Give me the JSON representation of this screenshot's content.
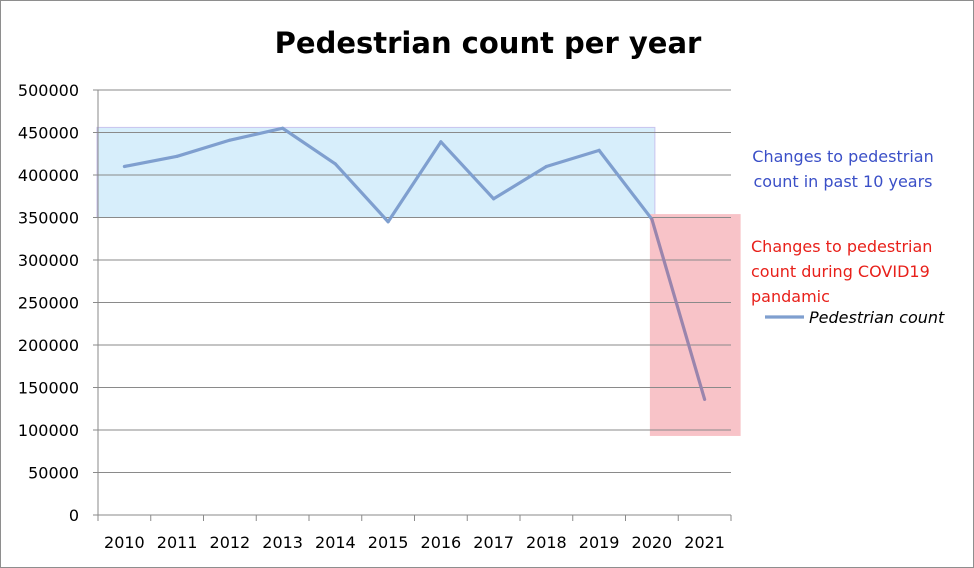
{
  "chart_data": {
    "type": "line",
    "title": "Pedestrian count per year",
    "xlabel": "",
    "ylabel": "",
    "categories": [
      "2010",
      "2011",
      "2012",
      "2013",
      "2014",
      "2015",
      "2016",
      "2017",
      "2018",
      "2019",
      "2020",
      "2021"
    ],
    "series": [
      {
        "name": "Pedestrian count",
        "values": [
          410000,
          422000,
          441000,
          455000,
          413000,
          345000,
          439000,
          372000,
          410000,
          429000,
          348000,
          136000
        ],
        "color": "#7f9fcf"
      }
    ],
    "ylim": [
      0,
      500000
    ],
    "yticks": [
      0,
      50000,
      100000,
      150000,
      200000,
      250000,
      300000,
      350000,
      400000,
      450000,
      500000
    ],
    "grid": true,
    "legend_position": "right",
    "annotations": [
      {
        "id": "past",
        "text_lines": [
          "Changes to pedestrian",
          "count in past 10 years"
        ],
        "text_color": "#3a4fc7",
        "fill": "#d7eefb",
        "x_range": [
          "2010",
          "2020"
        ],
        "y_range": [
          350000,
          456000
        ]
      },
      {
        "id": "covid",
        "text_lines": [
          "Changes to pedestrian",
          "count during COVID19",
          "pandamic"
        ],
        "text_color": "#e8201a",
        "fill": "#f8c3c8",
        "x_range": [
          "2020",
          "2021"
        ],
        "y_range": [
          93000,
          354000
        ]
      }
    ]
  }
}
